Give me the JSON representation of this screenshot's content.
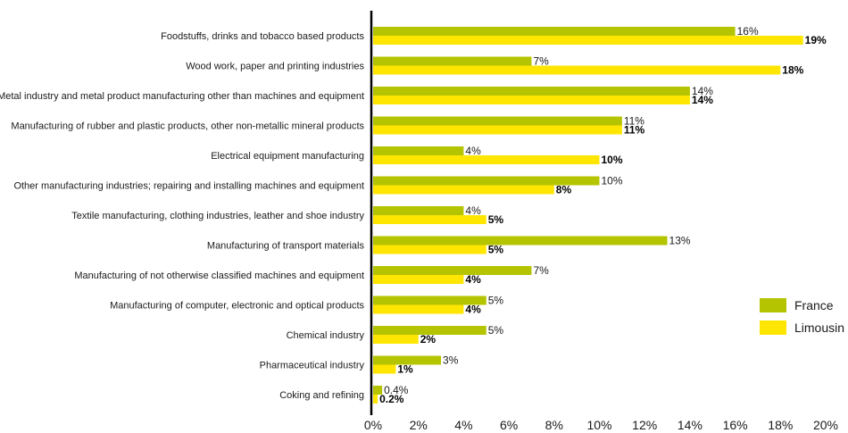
{
  "chart_data": {
    "type": "bar",
    "orientation": "horizontal",
    "categories": [
      "Foodstuffs, drinks and tobacco based products",
      "Wood work, paper and printing industries",
      "Metal industry and metal product manufacturing other than machines and equipment",
      "Manufacturing of rubber and plastic products, other non-metallic mineral products",
      "Electrical equipment manufacturing",
      "Other manufacturing industries; repairing and installing machines and equipment",
      "Textile manufacturing, clothing industries, leather and shoe industry",
      "Manufacturing of transport materials",
      "Manufacturing of not otherwise classified machines and equipment",
      "Manufacturing of computer, electronic and optical products",
      "Chemical industry",
      "Pharmaceutical industry",
      "Coking and refining"
    ],
    "series": [
      {
        "name": "France",
        "color": "#b5c400",
        "values": [
          16,
          7,
          14,
          11,
          4,
          10,
          4,
          13,
          7,
          5,
          5,
          3,
          0.4
        ],
        "labels": [
          "16%",
          "7%",
          "14%",
          "11%",
          "4%",
          "10%",
          "4%",
          "13%",
          "7%",
          "5%",
          "5%",
          "3%",
          "0.4%"
        ]
      },
      {
        "name": "Limousin",
        "color": "#ffe600",
        "values": [
          19,
          18,
          14,
          11,
          10,
          8,
          5,
          5,
          4,
          4,
          2,
          1,
          0.2
        ],
        "labels": [
          "19%",
          "18%",
          "14%",
          "11%",
          "10%",
          "8%",
          "5%",
          "5%",
          "4%",
          "4%",
          "2%",
          "1%",
          "0.2%"
        ]
      }
    ],
    "xlim": [
      0,
      20
    ],
    "xticks": [
      "0%",
      "2%",
      "4%",
      "6%",
      "8%",
      "10%",
      "12%",
      "14%",
      "16%",
      "18%",
      "20%"
    ],
    "title": "",
    "xlabel": "",
    "ylabel": "",
    "grid": false,
    "legend_position": "bottom-right"
  }
}
